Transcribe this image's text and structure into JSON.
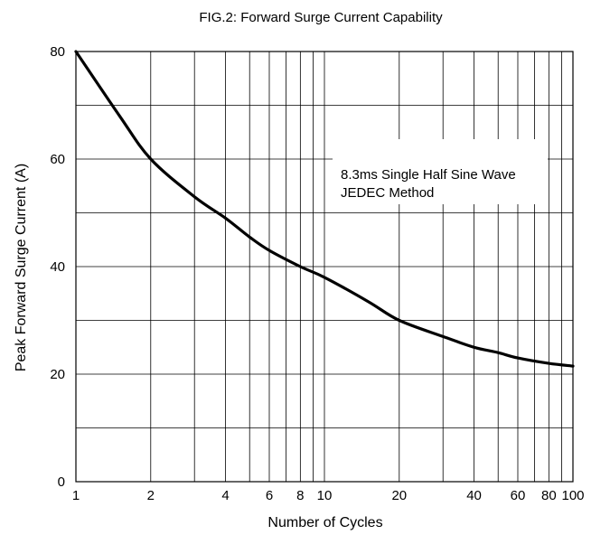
{
  "chart_data": {
    "type": "line",
    "title": "FIG.2: Forward  Surge  Current Capability",
    "xlabel": "Number of Cycles",
    "ylabel": "Peak Forward Surge Current   (A)",
    "x_scale": "log",
    "xlim": [
      1,
      100
    ],
    "ylim": [
      0,
      80
    ],
    "x_ticks": [
      1,
      2,
      4,
      6,
      8,
      10,
      20,
      40,
      60,
      80,
      100
    ],
    "x_tick_labels": [
      "1",
      "2",
      "4",
      "6",
      "8",
      "10",
      "20",
      "40",
      "60",
      "80",
      "100"
    ],
    "x_gridlines": [
      1,
      2,
      3,
      4,
      5,
      6,
      7,
      8,
      9,
      10,
      20,
      30,
      40,
      50,
      60,
      70,
      80,
      90,
      100
    ],
    "y_ticks": [
      0,
      20,
      40,
      60,
      80
    ],
    "y_tick_labels": [
      "0",
      "20",
      "40",
      "60",
      "80"
    ],
    "y_gridlines": [
      0,
      10,
      20,
      30,
      40,
      50,
      60,
      70,
      80
    ],
    "grid": true,
    "annotation": [
      "8.3ms Single Half Sine Wave",
      "JEDEC Method"
    ],
    "series": [
      {
        "x": [
          1,
          1.5,
          2,
          3,
          4,
          5,
          6,
          8,
          10,
          15,
          20,
          30,
          40,
          50,
          60,
          80,
          100
        ],
        "values": [
          80,
          68,
          60,
          53,
          49,
          45.5,
          43,
          40,
          38,
          33.5,
          30,
          27,
          25,
          24,
          23,
          22,
          21.5
        ]
      }
    ],
    "line_color": "#000000"
  }
}
